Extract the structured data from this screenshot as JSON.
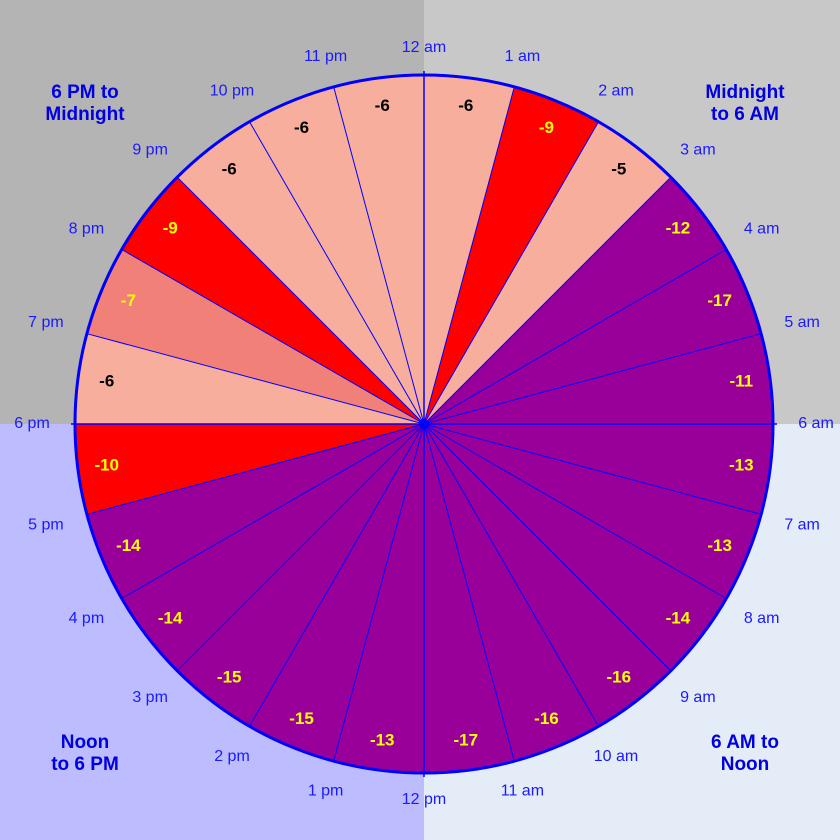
{
  "chart_data": {
    "type": "clock",
    "categories": [
      "12 am",
      "1 am",
      "2 am",
      "3 am",
      "4 am",
      "5 am",
      "6 am",
      "7 am",
      "8 am",
      "9 am",
      "10 am",
      "11 am",
      "12 pm",
      "1 pm",
      "2 pm",
      "3 pm",
      "4 pm",
      "5 pm",
      "6 pm",
      "7 pm",
      "8 pm",
      "9 pm",
      "10 pm",
      "11 pm"
    ],
    "values": [
      -6,
      -9,
      -5,
      -12,
      -17,
      -11,
      -13,
      -13,
      -14,
      -16,
      -16,
      -17,
      -13,
      -15,
      -15,
      -14,
      -14,
      -10,
      -6,
      -7,
      -9,
      -6,
      -6,
      -6
    ],
    "colors": [
      "#f7ae9c",
      "#ff0000",
      "#f7ae9c",
      "#990099",
      "#990099",
      "#990099",
      "#990099",
      "#990099",
      "#990099",
      "#990099",
      "#990099",
      "#990099",
      "#990099",
      "#990099",
      "#990099",
      "#990099",
      "#990099",
      "#ff0000",
      "#f7ae9c",
      "#f08078",
      "#ff0000",
      "#f7ae9c",
      "#f7ae9c",
      "#f7ae9c"
    ],
    "label_colors": [
      "#000000",
      "#ffff00",
      "#000000",
      "#ffff00",
      "#ffff00",
      "#ffff00",
      "#ffff00",
      "#ffff00",
      "#ffff00",
      "#ffff00",
      "#ffff00",
      "#ffff00",
      "#ffff00",
      "#ffff00",
      "#ffff00",
      "#ffff00",
      "#ffff00",
      "#ffff00",
      "#000000",
      "#ffff00",
      "#ffff00",
      "#000000",
      "#000000",
      "#000000"
    ],
    "quadrants": [
      {
        "lines": [
          "Midnight",
          "to 6 AM"
        ],
        "background": "#c8c8c8"
      },
      {
        "lines": [
          "6 AM to",
          "Noon"
        ],
        "background": "#e4ecf8"
      },
      {
        "lines": [
          "Noon",
          "to 6 PM"
        ],
        "background": "#bcbcff"
      },
      {
        "lines": [
          "6 PM to",
          "Midnight"
        ],
        "background": "#b4b4b4"
      }
    ]
  }
}
